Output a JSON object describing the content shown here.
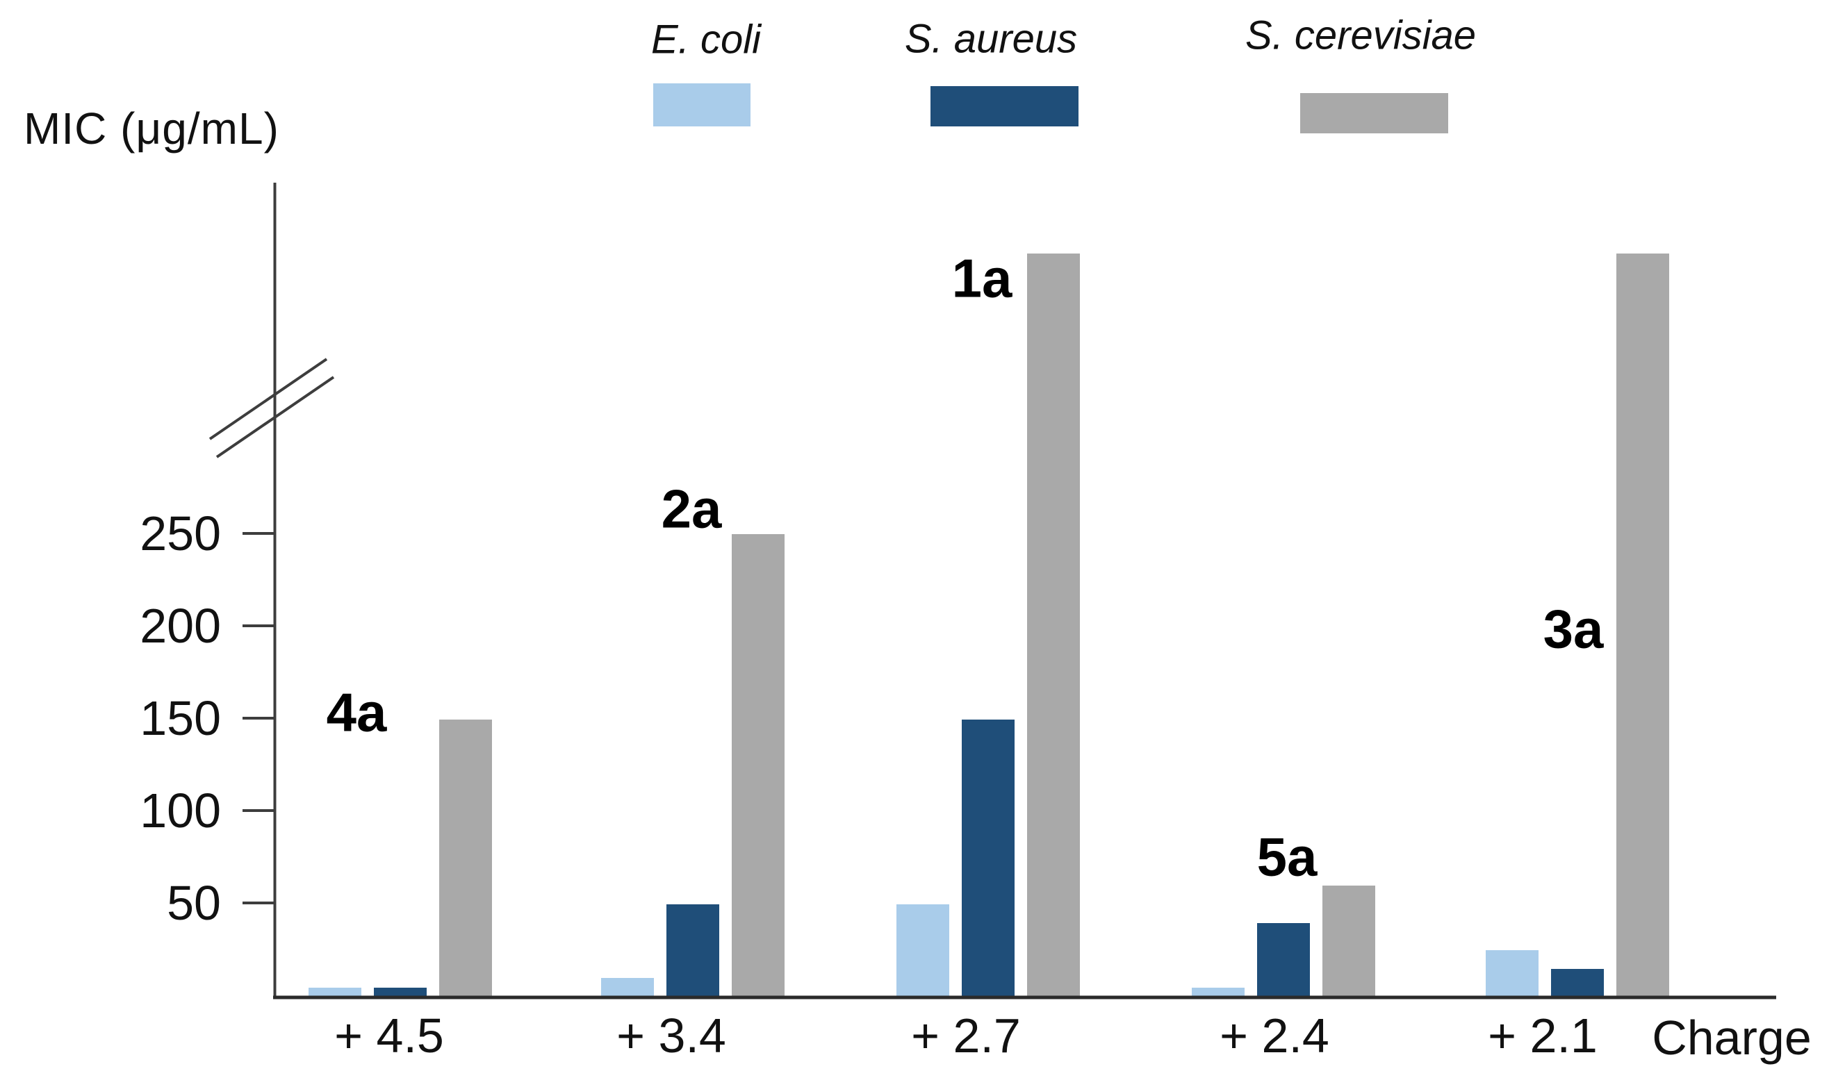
{
  "chart_data": {
    "type": "bar",
    "title": "",
    "ylabel": "MIC (μg/mL)",
    "xlabel": "Charge",
    "y_ticks": [
      "50",
      "100",
      "150",
      "200",
      "250"
    ],
    "axis_break": true,
    "grid": false,
    "legend_position": "top",
    "categories": [
      "+ 4.5",
      "+ 3.4",
      "+ 2.7",
      "+ 2.4",
      "+ 2.1"
    ],
    "compound_labels": [
      "4a",
      "2a",
      "1a",
      "5a",
      "3a"
    ],
    "series": [
      {
        "name": "E. coli",
        "color": "#A9CCEA",
        "values": [
          5,
          10,
          50,
          5,
          25
        ]
      },
      {
        "name": "S. aureus",
        "color": "#1F4E79",
        "values": [
          5,
          50,
          150,
          40,
          15
        ]
      },
      {
        "name": "S. cerevisiae",
        "color": "#A9A9A9",
        "values": [
          150,
          250,
          ">250",
          60,
          ">250"
        ]
      }
    ],
    "offscale_note": "Gray bars for compounds 1a and 3a extend past the y-axis break (> 250 μg/mL)",
    "axis_color": "#3d3d3d",
    "text_color": "#111111"
  }
}
